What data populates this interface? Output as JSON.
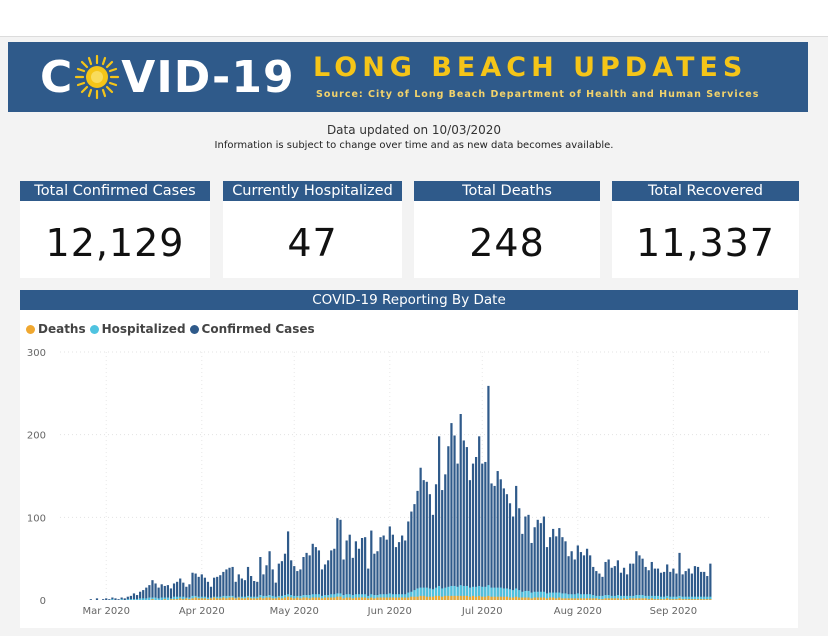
{
  "banner": {
    "logo_prefix": "C",
    "logo_suffix": "VID-19",
    "title": "LONG BEACH UPDATES",
    "source": "Source: City of Long Beach Department of Health and Human Services"
  },
  "updated": "Data updated on 10/03/2020",
  "info": "Information is subject to change over time and as new data becomes available.",
  "cards": [
    {
      "label": "Total Confirmed Cases",
      "value": "12,129"
    },
    {
      "label": "Currently Hospitalized",
      "value": "47"
    },
    {
      "label": "Total Deaths",
      "value": "248"
    },
    {
      "label": "Total Recovered",
      "value": "11,337"
    }
  ],
  "colors": {
    "banner": "#2f5a8a",
    "accent_yellow": "#f5c518",
    "confirmed": "#2f5a8a",
    "hospitalized": "#4fc3e0",
    "deaths": "#f0a830"
  },
  "chart_data": {
    "type": "bar",
    "title": "COVID-19 Reporting By Date",
    "legend": [
      {
        "name": "Deaths",
        "color": "#f0a830"
      },
      {
        "name": "Hospitalized",
        "color": "#4fc3e0"
      },
      {
        "name": "Confirmed Cases",
        "color": "#2f5a8a"
      }
    ],
    "legend_position": "top-left",
    "ylim": [
      0,
      300
    ],
    "yticks": [
      0,
      100,
      200,
      300
    ],
    "x_start": "2020-02-15",
    "x_end": "2020-10-03",
    "xticks": [
      {
        "date": "2020-03-01",
        "label": "Mar 2020"
      },
      {
        "date": "2020-04-01",
        "label": "Apr 2020"
      },
      {
        "date": "2020-05-01",
        "label": "May 2020"
      },
      {
        "date": "2020-06-01",
        "label": "Jun 2020"
      },
      {
        "date": "2020-07-01",
        "label": "Jul 2020"
      },
      {
        "date": "2020-08-01",
        "label": "Aug 2020"
      },
      {
        "date": "2020-09-01",
        "label": "Sep 2020"
      }
    ],
    "grid": true,
    "series": [
      {
        "name": "Confirmed Cases",
        "start_date": "2020-02-24",
        "values": [
          0,
          1,
          0,
          2,
          0,
          1,
          2,
          1,
          3,
          2,
          1,
          3,
          2,
          4,
          5,
          8,
          6,
          10,
          12,
          15,
          18,
          24,
          20,
          15,
          19,
          17,
          18,
          14,
          20,
          22,
          26,
          21,
          16,
          19,
          33,
          32,
          28,
          31,
          27,
          22,
          16,
          27,
          28,
          30,
          34,
          37,
          39,
          40,
          22,
          31,
          26,
          24,
          40,
          29,
          23,
          22,
          52,
          31,
          42,
          59,
          37,
          21,
          44,
          47,
          56,
          83,
          48,
          41,
          35,
          37,
          52,
          57,
          54,
          68,
          64,
          60,
          37,
          43,
          48,
          60,
          62,
          99,
          97,
          49,
          72,
          79,
          51,
          71,
          62,
          75,
          76,
          38,
          84,
          56,
          59,
          76,
          78,
          73,
          89,
          79,
          64,
          70,
          78,
          72,
          95,
          107,
          116,
          132,
          160,
          145,
          143,
          128,
          103,
          140,
          198,
          133,
          152,
          186,
          214,
          199,
          165,
          225,
          193,
          185,
          145,
          165,
          173,
          198,
          165,
          167,
          259,
          141,
          138,
          156,
          146,
          135,
          128,
          117,
          101,
          138,
          111,
          80,
          101,
          103,
          69,
          88,
          97,
          93,
          101,
          64,
          76,
          86,
          77,
          87,
          76,
          71,
          53,
          59,
          49,
          66,
          58,
          54,
          62,
          54,
          40,
          35,
          32,
          28,
          46,
          49,
          39,
          41,
          48,
          33,
          39,
          31,
          44,
          44,
          59,
          54,
          50,
          40,
          36,
          46,
          38,
          38,
          33,
          34,
          43,
          34,
          38,
          32,
          57,
          31,
          35,
          38,
          32,
          41,
          40,
          34,
          34,
          29,
          44
        ]
      },
      {
        "name": "Hospitalized",
        "start_date": "2020-02-24",
        "values": [
          0,
          0,
          0,
          0,
          0,
          0,
          0,
          0,
          1,
          0,
          0,
          1,
          0,
          1,
          1,
          1,
          1,
          2,
          2,
          2,
          3,
          3,
          3,
          2,
          3,
          3,
          3,
          2,
          4,
          4,
          4,
          4,
          3,
          3,
          5,
          5,
          4,
          4,
          4,
          3,
          3,
          4,
          4,
          4,
          5,
          5,
          5,
          5,
          3,
          4,
          4,
          4,
          5,
          4,
          4,
          4,
          6,
          5,
          5,
          6,
          5,
          4,
          5,
          5,
          6,
          7,
          6,
          5,
          5,
          5,
          6,
          6,
          6,
          7,
          7,
          7,
          5,
          6,
          6,
          7,
          7,
          8,
          8,
          6,
          7,
          7,
          6,
          7,
          7,
          7,
          7,
          5,
          7,
          6,
          6,
          7,
          7,
          7,
          8,
          7,
          7,
          7,
          7,
          7,
          9,
          10,
          12,
          14,
          15,
          15,
          15,
          14,
          13,
          15,
          17,
          14,
          15,
          16,
          17,
          17,
          16,
          18,
          17,
          17,
          15,
          16,
          16,
          17,
          16,
          16,
          18,
          15,
          15,
          15,
          15,
          14,
          14,
          13,
          12,
          14,
          12,
          10,
          11,
          11,
          9,
          10,
          10,
          10,
          10,
          8,
          9,
          9,
          9,
          9,
          8,
          8,
          7,
          7,
          7,
          8,
          7,
          7,
          7,
          7,
          6,
          5,
          5,
          5,
          6,
          6,
          5,
          5,
          6,
          5,
          5,
          5,
          5,
          5,
          6,
          6,
          6,
          5,
          5,
          5,
          5,
          5,
          4,
          4,
          5,
          4,
          4,
          4,
          5,
          4,
          4,
          4,
          4,
          4,
          4,
          4,
          4,
          4,
          4
        ]
      },
      {
        "name": "Deaths",
        "start_date": "2020-02-24",
        "values": [
          0,
          0,
          0,
          0,
          0,
          0,
          0,
          0,
          0,
          0,
          0,
          0,
          0,
          0,
          0,
          0,
          0,
          0,
          0,
          0,
          0,
          1,
          0,
          0,
          0,
          1,
          0,
          1,
          1,
          1,
          2,
          1,
          2,
          1,
          2,
          3,
          2,
          2,
          2,
          1,
          2,
          3,
          2,
          2,
          3,
          2,
          3,
          3,
          2,
          3,
          2,
          2,
          3,
          2,
          2,
          2,
          3,
          2,
          3,
          3,
          2,
          2,
          3,
          2,
          3,
          4,
          3,
          2,
          3,
          2,
          3,
          3,
          2,
          3,
          3,
          3,
          2,
          3,
          3,
          3,
          3,
          4,
          4,
          2,
          3,
          3,
          2,
          3,
          3,
          3,
          3,
          2,
          3,
          2,
          3,
          3,
          3,
          3,
          3,
          3,
          3,
          3,
          3,
          3,
          3,
          4,
          4,
          4,
          5,
          5,
          4,
          4,
          4,
          5,
          5,
          4,
          5,
          5,
          5,
          5,
          5,
          5,
          5,
          5,
          4,
          5,
          4,
          5,
          4,
          4,
          5,
          4,
          4,
          4,
          4,
          4,
          4,
          3,
          3,
          4,
          3,
          3,
          3,
          3,
          2,
          3,
          3,
          3,
          3,
          2,
          3,
          3,
          2,
          3,
          2,
          2,
          2,
          2,
          2,
          2,
          2,
          2,
          2,
          2,
          2,
          2,
          1,
          1,
          2,
          2,
          2,
          2,
          2,
          1,
          2,
          1,
          2,
          2,
          2,
          2,
          2,
          2,
          1,
          2,
          1,
          1,
          1,
          1,
          2,
          1,
          1,
          1,
          2,
          1,
          1,
          1,
          1,
          1,
          1,
          1,
          1,
          1,
          1
        ]
      }
    ]
  }
}
